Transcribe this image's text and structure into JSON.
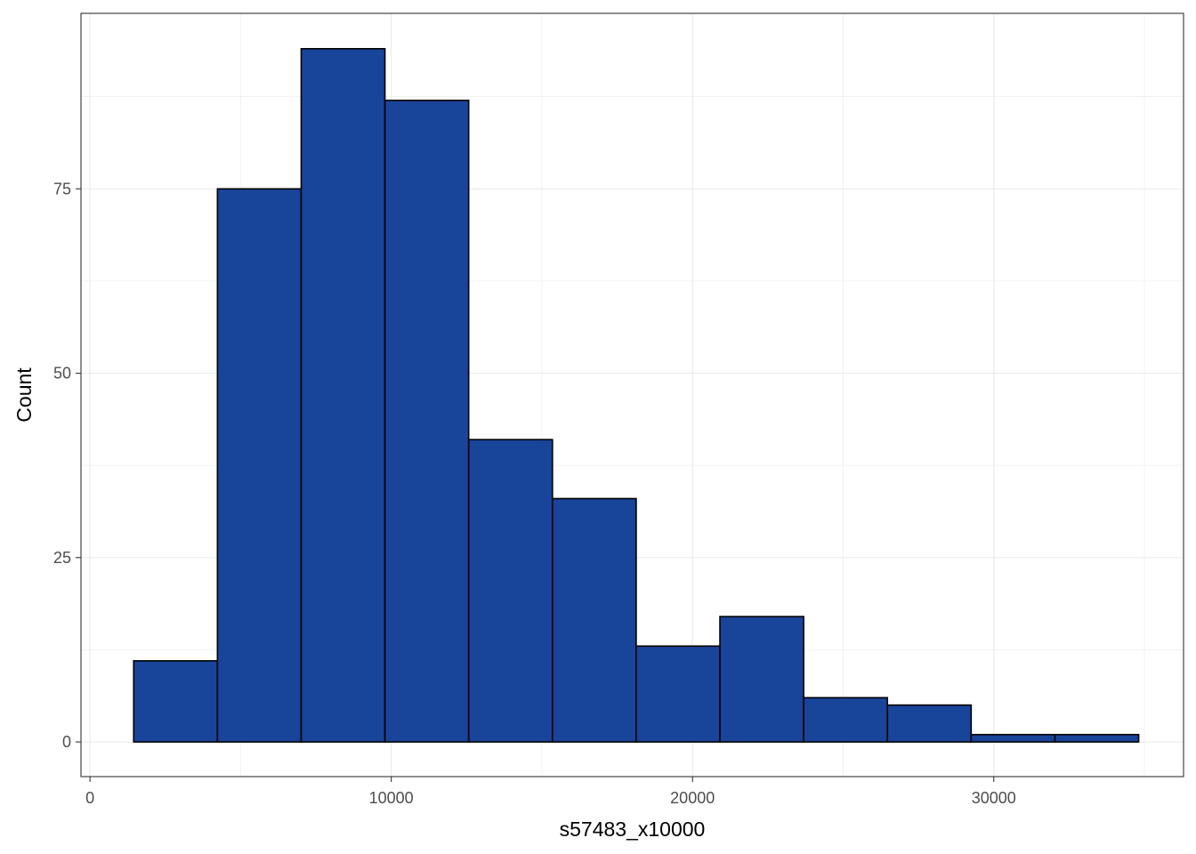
{
  "chart_data": {
    "type": "bar",
    "subtype": "histogram",
    "title": "",
    "xlabel": "s57483_x10000",
    "ylabel": "Count",
    "xlim": [
      -300,
      36300
    ],
    "ylim": [
      -4.7,
      98.8
    ],
    "x_ticks": [
      0,
      10000,
      20000,
      30000
    ],
    "x_tick_labels": [
      "0",
      "10000",
      "20000",
      "30000"
    ],
    "y_ticks": [
      0,
      25,
      50,
      75
    ],
    "y_tick_labels": [
      "0",
      "25",
      "50",
      "75"
    ],
    "x_minor_gridlines": [
      5000,
      15000,
      25000,
      35000
    ],
    "y_minor_gridlines": [
      12.5,
      37.5,
      62.5,
      87.5
    ],
    "grid": true,
    "legend": "none",
    "bin_edges": [
      1450,
      4230,
      7010,
      9790,
      12570,
      15350,
      18130,
      20910,
      23690,
      26470,
      29250,
      32030,
      34810
    ],
    "values": [
      11,
      75,
      94,
      87,
      41,
      33,
      13,
      17,
      6,
      5,
      1,
      1
    ],
    "colors": {
      "bar_fill": "#18449a",
      "bar_stroke": "#000000",
      "grid": "#ebebeb",
      "panel_border": "#333333",
      "tick_label": "#4d4d4d",
      "axis_title": "#000000"
    }
  }
}
